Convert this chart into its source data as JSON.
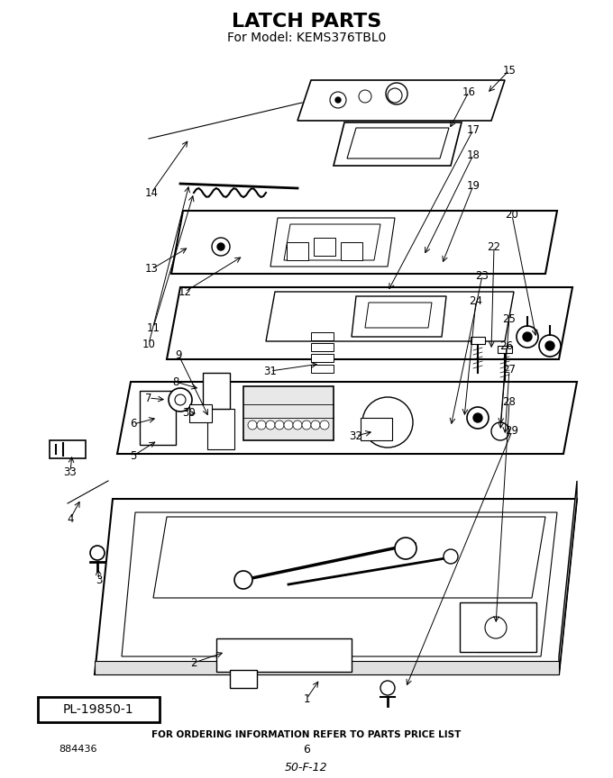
{
  "title": "LATCH PARTS",
  "subtitle": "For Model: KEMS376TBL0",
  "footer_text": "FOR ORDERING INFORMATION REFER TO PARTS PRICE LIST",
  "part_number_box": "PL-19850-1",
  "left_num": "884436",
  "center_num": "6",
  "bottom_code": "50-F-12",
  "bg_color": "#ffffff",
  "text_color": "#000000"
}
